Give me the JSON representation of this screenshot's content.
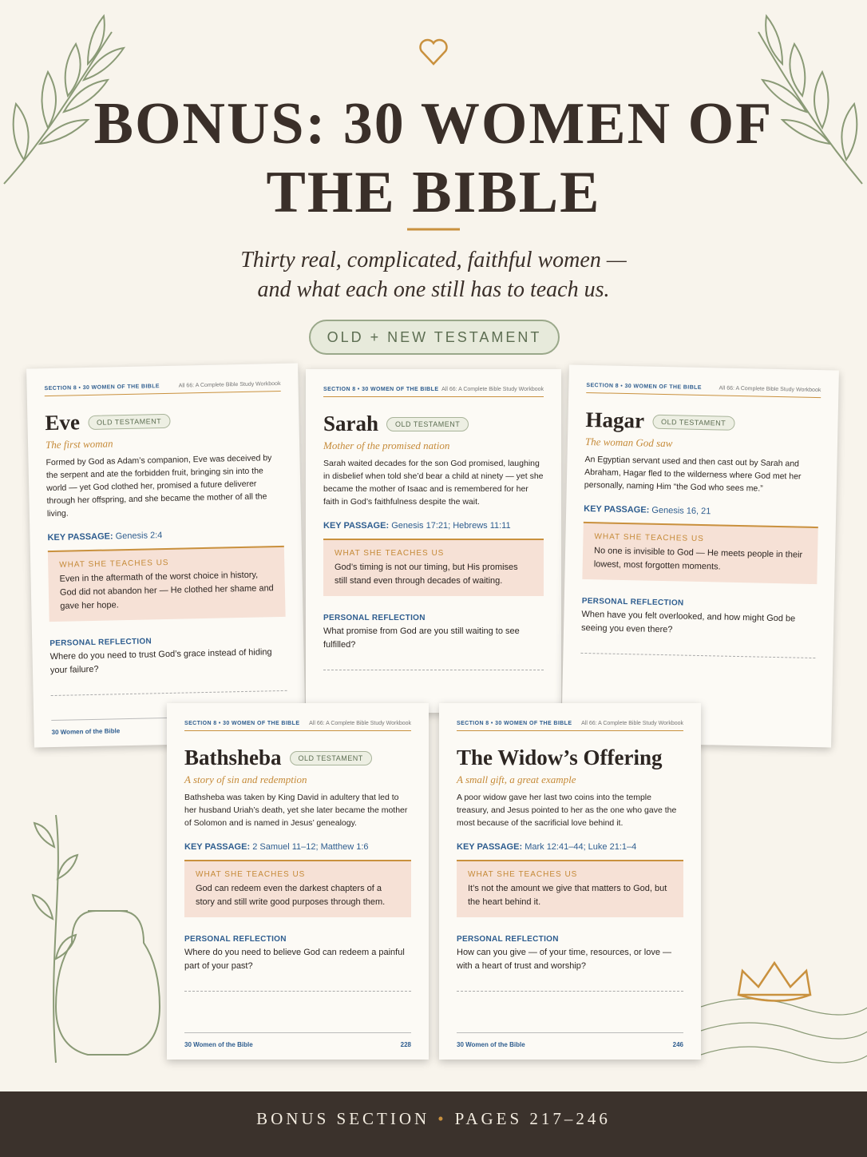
{
  "header": {
    "title": "BONUS: 30 WOMEN OF THE BIBLE",
    "subtitle_lines": [
      "Thirty real, complicated, faithful women —",
      "and what each one still has to teach us."
    ],
    "badge": "OLD + NEW TESTAMENT"
  },
  "pages": [
    {
      "section": "SECTION 8 • 30 WOMEN OF THE BIBLE",
      "book": "All 66: A Complete Bible Study Workbook",
      "name": "Eve",
      "tag": "OLD TESTAMENT",
      "subtitle": "The first woman",
      "body": "Formed by God as Adam’s companion, Eve was deceived by the serpent and ate the forbidden fruit, bringing sin into the world — yet God clothed her, promised a future deliverer through her offspring, and she became the mother of all the living.",
      "key_label": "KEY PASSAGE:",
      "key": "Genesis 2:4",
      "teach_label": "WHAT SHE TEACHES US",
      "teach": "Even in the aftermath of the worst choice in history, God did not abandon her — He clothed her shame and gave her hope.",
      "reflect_label": "PERSONAL REFLECTION",
      "reflect": "Where do you need to trust God’s grace instead of hiding your failure?",
      "footer": "30 Women of the Bible"
    },
    {
      "section": "SECTION 8 • 30 WOMEN OF THE BIBLE",
      "book": "All 66: A Complete Bible Study Workbook",
      "name": "Sarah",
      "tag": "OLD TESTAMENT",
      "subtitle": "Mother of the promised nation",
      "body": "Sarah waited decades for the son God promised, laughing in disbelief when told she’d bear a child at ninety — yet she became the mother of Isaac and is remembered for her faith in God’s faithfulness despite the wait.",
      "key_label": "KEY PASSAGE:",
      "key": "Genesis 17:21; Hebrews 11:11",
      "teach_label": "WHAT SHE TEACHES US",
      "teach": "God’s timing is not our timing, but His promises still stand even through decades of waiting.",
      "reflect_label": "PERSONAL REFLECTION",
      "reflect": "What promise from God are you still waiting to see fulfilled?"
    },
    {
      "section": "SECTION 8 • 30 WOMEN OF THE BIBLE",
      "book": "All 66: A Complete Bible Study Workbook",
      "name": "Hagar",
      "tag": "OLD TESTAMENT",
      "subtitle": "The woman God saw",
      "body": "An Egyptian servant used and then cast out by Sarah and Abraham, Hagar fled to the wilderness where God met her personally, naming Him “the God who sees me.”",
      "key_label": "KEY PASSAGE:",
      "key": "Genesis 16, 21",
      "teach_label": "WHAT SHE TEACHES US",
      "teach": "No one is invisible to God — He meets people in their lowest, most forgotten moments.",
      "reflect_label": "PERSONAL REFLECTION",
      "reflect": "When have you felt overlooked, and how might God be seeing you even there?"
    },
    {
      "section": "SECTION 8 • 30 WOMEN OF THE BIBLE",
      "book": "All 66: A Complete Bible Study Workbook",
      "name": "Bathsheba",
      "tag": "OLD TESTAMENT",
      "subtitle": "A story of sin and redemption",
      "body": "Bathsheba was taken by King David in adultery that led to her husband Uriah’s death, yet she later became the mother of Solomon and is named in Jesus’ genealogy.",
      "key_label": "KEY PASSAGE:",
      "key": "2 Samuel 11–12; Matthew 1:6",
      "teach_label": "WHAT SHE TEACHES US",
      "teach": "God can redeem even the darkest chapters of a story and still write good purposes through them.",
      "reflect_label": "PERSONAL REFLECTION",
      "reflect": "Where do you need to believe God can redeem a painful part of your past?",
      "footer": "30 Women of the Bible",
      "page_number": "228"
    },
    {
      "section": "SECTION 8 • 30 WOMEN OF THE BIBLE",
      "book": "All 66: A Complete Bible Study Workbook",
      "name": "The Widow’s Offering",
      "subtitle": "A small gift, a great example",
      "body": "A poor widow gave her last two coins into the temple treasury, and Jesus pointed to her as the one who gave the most because of the sacrificial love behind it.",
      "key_label": "KEY PASSAGE:",
      "key": "Mark 12:41–44; Luke 21:1–4",
      "teach_label": "WHAT SHE TEACHES US",
      "teach": "It’s not the amount we give that matters to God, but the heart behind it.",
      "reflect_label": "PERSONAL REFLECTION",
      "reflect": "How can you give — of your time, resources, or love — with a heart of trust and worship?",
      "footer": "30 Women of the Bible",
      "page_number": "246"
    }
  ],
  "footer": {
    "left": "BONUS SECTION",
    "separator": "•",
    "right": "PAGES 217–246"
  }
}
